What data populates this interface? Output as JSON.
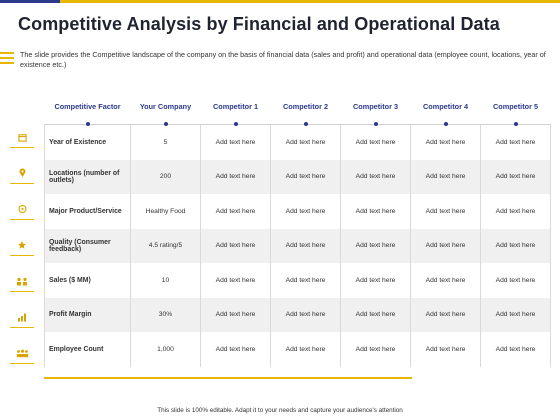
{
  "title": "Competitive Analysis by Financial and Operational Data",
  "description": "The slide provides the Competitive landscape of the company on the basis of financial data (sales and profit) and operational data (employee count, locations, year of existence etc.)",
  "table": {
    "headers": [
      "Competitive Factor",
      "Your Company",
      "Competitor 1",
      "Competitor 2",
      "Competitor 3",
      "Competitor 4",
      "Competitor 5"
    ],
    "rows": [
      {
        "icon": "calendar-icon",
        "factor": "Year of Existence",
        "your_company": "5",
        "c1": "Add text here",
        "c2": "Add text here",
        "c3": "Add text here",
        "c4": "Add text here",
        "c5": "Add text here"
      },
      {
        "icon": "location-pin-icon",
        "factor": "Locations (number of outlets)",
        "your_company": "200",
        "c1": "Add text here",
        "c2": "Add text here",
        "c3": "Add text here",
        "c4": "Add text here",
        "c5": "Add text here"
      },
      {
        "icon": "product-service-icon",
        "factor": "Major Product/Service",
        "your_company": "Healthy Food",
        "c1": "Add text here",
        "c2": "Add text here",
        "c3": "Add text here",
        "c4": "Add text here",
        "c5": "Add text here"
      },
      {
        "icon": "quality-hand-icon",
        "factor": "Quality (Consumer feedback)",
        "your_company": "4.5 rating/5",
        "c1": "Add text here",
        "c2": "Add text here",
        "c3": "Add text here",
        "c4": "Add text here",
        "c5": "Add text here"
      },
      {
        "icon": "sales-people-icon",
        "factor": "Sales ($ MM)",
        "your_company": "10",
        "c1": "Add text here",
        "c2": "Add text here",
        "c3": "Add text here",
        "c4": "Add text here",
        "c5": "Add text here"
      },
      {
        "icon": "profit-chart-icon",
        "factor": "Profit Margin",
        "your_company": "30%",
        "c1": "Add text here",
        "c2": "Add text here",
        "c3": "Add text here",
        "c4": "Add text here",
        "c5": "Add text here"
      },
      {
        "icon": "employees-icon",
        "factor": "Employee Count",
        "your_company": "1,000",
        "c1": "Add text here",
        "c2": "Add text here",
        "c3": "Add text here",
        "c4": "Add text here",
        "c5": "Add text here"
      }
    ]
  },
  "footer": "This slide is 100% editable. Adapt it to your needs and capture your audience's attention",
  "colors": {
    "accent": "#e6b800",
    "brand": "#2b3a8c",
    "alt_row": "#f0f0f0"
  }
}
